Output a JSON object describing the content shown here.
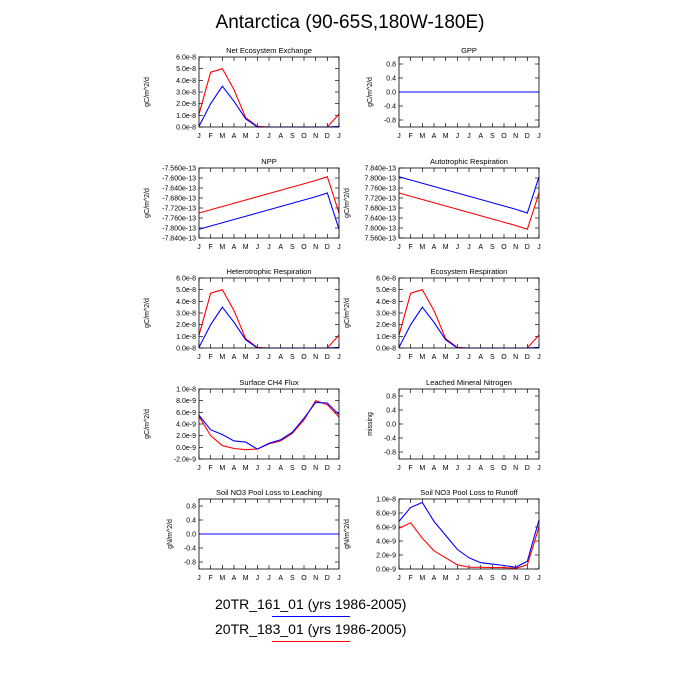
{
  "figure": {
    "title": "Antarctica (90-65S,180W-180E)",
    "months": [
      "J",
      "F",
      "M",
      "A",
      "M",
      "J",
      "J",
      "A",
      "S",
      "O",
      "N",
      "D",
      "J"
    ],
    "legend": [
      {
        "label": "20TR_161_01 (yrs 1986-2005)",
        "color": "#0000ff"
      },
      {
        "label": "20TR_183_01 (yrs 1986-2005)",
        "color": "#ff0000"
      }
    ]
  },
  "chart_data": [
    {
      "type": "line",
      "title": "Net Ecosystem Exchange",
      "ylabel": "gC/m^2/d",
      "ylim": [
        0,
        6e-08
      ],
      "yticks": [
        "0.0e-8",
        "1.0e-8",
        "2.0e-8",
        "3.0e-8",
        "4.0e-8",
        "5.0e-8",
        "6.0e-8"
      ],
      "x": [
        1,
        2,
        3,
        4,
        5,
        6,
        7,
        8,
        9,
        10,
        11,
        12,
        13
      ],
      "series": [
        {
          "color": "#ff0000",
          "values": [
            1.1e-08,
            4.7e-08,
            5e-08,
            3.2e-08,
            8e-09,
            5e-10,
            0,
            0,
            0,
            0,
            0,
            0,
            1.1e-08
          ]
        },
        {
          "color": "#0000ff",
          "values": [
            5e-10,
            2e-08,
            3.5e-08,
            2.2e-08,
            7e-09,
            0,
            0,
            0,
            0,
            0,
            0,
            0,
            5e-10
          ]
        }
      ]
    },
    {
      "type": "line",
      "title": "GPP",
      "ylabel": "gC/m^2/d",
      "ylim": [
        -1,
        1
      ],
      "yticks": [
        "-0.8",
        "-0.4",
        "0.0",
        "0.4",
        "0.8"
      ],
      "x": [
        1,
        2,
        3,
        4,
        5,
        6,
        7,
        8,
        9,
        10,
        11,
        12,
        13
      ],
      "series": [
        {
          "color": "#ff0000",
          "values": [
            0,
            0,
            0,
            0,
            0,
            0,
            0,
            0,
            0,
            0,
            0,
            0,
            0
          ]
        },
        {
          "color": "#0000ff",
          "values": [
            0,
            0,
            0,
            0,
            0,
            0,
            0,
            0,
            0,
            0,
            0,
            0,
            0
          ]
        }
      ]
    },
    {
      "type": "line",
      "title": "NPP",
      "ylabel": "gC/m^2/d",
      "ylim": [
        -7.84e-13,
        -7.56e-13
      ],
      "yticks": [
        "-7.840e-13",
        "-7.800e-13",
        "-7.760e-13",
        "-7.720e-13",
        "-7.680e-13",
        "-7.640e-13",
        "-7.600e-13",
        "-7.560e-13"
      ],
      "x": [
        1,
        2,
        3,
        4,
        5,
        6,
        7,
        8,
        9,
        10,
        11,
        12,
        13
      ],
      "series": [
        {
          "color": "#ff0000",
          "values": [
            -7.74e-13,
            -7.727e-13,
            -7.714e-13,
            -7.701e-13,
            -7.688e-13,
            -7.675e-13,
            -7.662e-13,
            -7.649e-13,
            -7.636e-13,
            -7.623e-13,
            -7.61e-13,
            -7.595e-13,
            -7.74e-13
          ]
        },
        {
          "color": "#0000ff",
          "values": [
            -7.805e-13,
            -7.792e-13,
            -7.779e-13,
            -7.766e-13,
            -7.753e-13,
            -7.74e-13,
            -7.727e-13,
            -7.714e-13,
            -7.701e-13,
            -7.688e-13,
            -7.675e-13,
            -7.66e-13,
            -7.805e-13
          ]
        }
      ]
    },
    {
      "type": "line",
      "title": "Autotrophic Respiration",
      "ylabel": "gC/m^2/d",
      "ylim": [
        7.56e-13,
        7.84e-13
      ],
      "yticks": [
        "7.560e-13",
        "7.600e-13",
        "7.640e-13",
        "7.680e-13",
        "7.720e-13",
        "7.760e-13",
        "7.800e-13",
        "7.840e-13"
      ],
      "x": [
        1,
        2,
        3,
        4,
        5,
        6,
        7,
        8,
        9,
        10,
        11,
        12,
        13
      ],
      "series": [
        {
          "color": "#ff0000",
          "values": [
            7.74e-13,
            7.727e-13,
            7.714e-13,
            7.701e-13,
            7.688e-13,
            7.675e-13,
            7.662e-13,
            7.649e-13,
            7.636e-13,
            7.623e-13,
            7.61e-13,
            7.595e-13,
            7.74e-13
          ]
        },
        {
          "color": "#0000ff",
          "values": [
            7.805e-13,
            7.792e-13,
            7.779e-13,
            7.766e-13,
            7.753e-13,
            7.74e-13,
            7.727e-13,
            7.714e-13,
            7.701e-13,
            7.688e-13,
            7.675e-13,
            7.66e-13,
            7.805e-13
          ]
        }
      ]
    },
    {
      "type": "line",
      "title": "Heterotrophic Respiration",
      "ylabel": "gC/m^2/d",
      "ylim": [
        0,
        6e-08
      ],
      "yticks": [
        "0.0e-8",
        "1.0e-8",
        "2.0e-8",
        "3.0e-8",
        "4.0e-8",
        "5.0e-8",
        "6.0e-8"
      ],
      "x": [
        1,
        2,
        3,
        4,
        5,
        6,
        7,
        8,
        9,
        10,
        11,
        12,
        13
      ],
      "series": [
        {
          "color": "#ff0000",
          "values": [
            1.1e-08,
            4.7e-08,
            5e-08,
            3.2e-08,
            8e-09,
            5e-10,
            0,
            0,
            0,
            0,
            0,
            0,
            1.1e-08
          ]
        },
        {
          "color": "#0000ff",
          "values": [
            5e-10,
            2e-08,
            3.5e-08,
            2.2e-08,
            7e-09,
            0,
            0,
            0,
            0,
            0,
            0,
            0,
            5e-10
          ]
        }
      ]
    },
    {
      "type": "line",
      "title": "Ecosystem Respiration",
      "ylabel": "gC/m^2/d",
      "ylim": [
        0,
        6e-08
      ],
      "yticks": [
        "0.0e-8",
        "1.0e-8",
        "2.0e-8",
        "3.0e-8",
        "4.0e-8",
        "5.0e-8",
        "6.0e-8"
      ],
      "x": [
        1,
        2,
        3,
        4,
        5,
        6,
        7,
        8,
        9,
        10,
        11,
        12,
        13
      ],
      "series": [
        {
          "color": "#ff0000",
          "values": [
            1.1e-08,
            4.7e-08,
            5e-08,
            3.2e-08,
            8e-09,
            5e-10,
            0,
            0,
            0,
            0,
            0,
            0,
            1.1e-08
          ]
        },
        {
          "color": "#0000ff",
          "values": [
            5e-10,
            2e-08,
            3.5e-08,
            2.2e-08,
            7e-09,
            0,
            0,
            0,
            0,
            0,
            0,
            0,
            5e-10
          ]
        }
      ]
    },
    {
      "type": "line",
      "title": "Surface CH4 Flux",
      "ylabel": "gC/m^2/d",
      "ylim": [
        -2e-09,
        1e-08
      ],
      "yticks": [
        "-2.0e-9",
        "0.0e-9",
        "2.0e-9",
        "4.0e-9",
        "6.0e-9",
        "8.0e-9",
        "1.0e-8"
      ],
      "x": [
        1,
        2,
        3,
        4,
        5,
        6,
        7,
        8,
        9,
        10,
        11,
        12,
        13
      ],
      "series": [
        {
          "color": "#ff0000",
          "values": [
            5.3e-09,
            2e-09,
            3e-10,
            -2e-10,
            -4e-10,
            -3e-10,
            6e-10,
            1.1e-09,
            2.4e-09,
            4.7e-09,
            8e-09,
            7.3e-09,
            5.2e-09
          ]
        },
        {
          "color": "#0000ff",
          "values": [
            5.5e-09,
            3e-09,
            2.2e-09,
            1.1e-09,
            9e-10,
            -3e-10,
            7e-10,
            1.3e-09,
            2.6e-09,
            5e-09,
            7.7e-09,
            7.6e-09,
            5.6e-09
          ]
        }
      ]
    },
    {
      "type": "line",
      "title": "Leached Mineral Nitrogen",
      "ylabel": "missing",
      "ylim": [
        -1,
        1
      ],
      "yticks": [
        "-0.8",
        "-0.4",
        "0.0",
        "0.4",
        "0.8"
      ],
      "x": [
        1,
        2,
        3,
        4,
        5,
        6,
        7,
        8,
        9,
        10,
        11,
        12,
        13
      ],
      "series": []
    },
    {
      "type": "line",
      "title": "Soil NO3 Pool Loss to Leaching",
      "ylabel": "gN/m^2/d",
      "ylim": [
        -1,
        1
      ],
      "yticks": [
        "-0.8",
        "-0.4",
        "0.0",
        "0.4",
        "0.8"
      ],
      "x": [
        1,
        2,
        3,
        4,
        5,
        6,
        7,
        8,
        9,
        10,
        11,
        12,
        13
      ],
      "series": [
        {
          "color": "#ff0000",
          "values": [
            0,
            0,
            0,
            0,
            0,
            0,
            0,
            0,
            0,
            0,
            0,
            0,
            0
          ]
        },
        {
          "color": "#0000ff",
          "values": [
            0,
            0,
            0,
            0,
            0,
            0,
            0,
            0,
            0,
            0,
            0,
            0,
            0
          ]
        }
      ]
    },
    {
      "type": "line",
      "title": "Soil NO3 Pool Loss to Runoff",
      "ylabel": "gN/m^2/d",
      "ylim": [
        0,
        1e-08
      ],
      "yticks": [
        "0.0e-9",
        "2.0e-9",
        "4.0e-9",
        "6.0e-9",
        "8.0e-9",
        "1.0e-8"
      ],
      "x": [
        1,
        2,
        3,
        4,
        5,
        6,
        7,
        8,
        9,
        10,
        11,
        12,
        13
      ],
      "series": [
        {
          "color": "#ff0000",
          "values": [
            5.8e-09,
            6.6e-09,
            4.4e-09,
            2.6e-09,
            1.6e-09,
            6e-10,
            2.5e-10,
            2.5e-10,
            2e-10,
            2e-10,
            1e-10,
            6e-10,
            6e-09
          ]
        },
        {
          "color": "#0000ff",
          "values": [
            6.8e-09,
            8.8e-09,
            9.5e-09,
            6.8e-09,
            4.8e-09,
            2.8e-09,
            1.6e-09,
            9e-10,
            7e-10,
            5e-10,
            2.5e-10,
            1.1e-09,
            7e-09
          ]
        }
      ]
    }
  ]
}
